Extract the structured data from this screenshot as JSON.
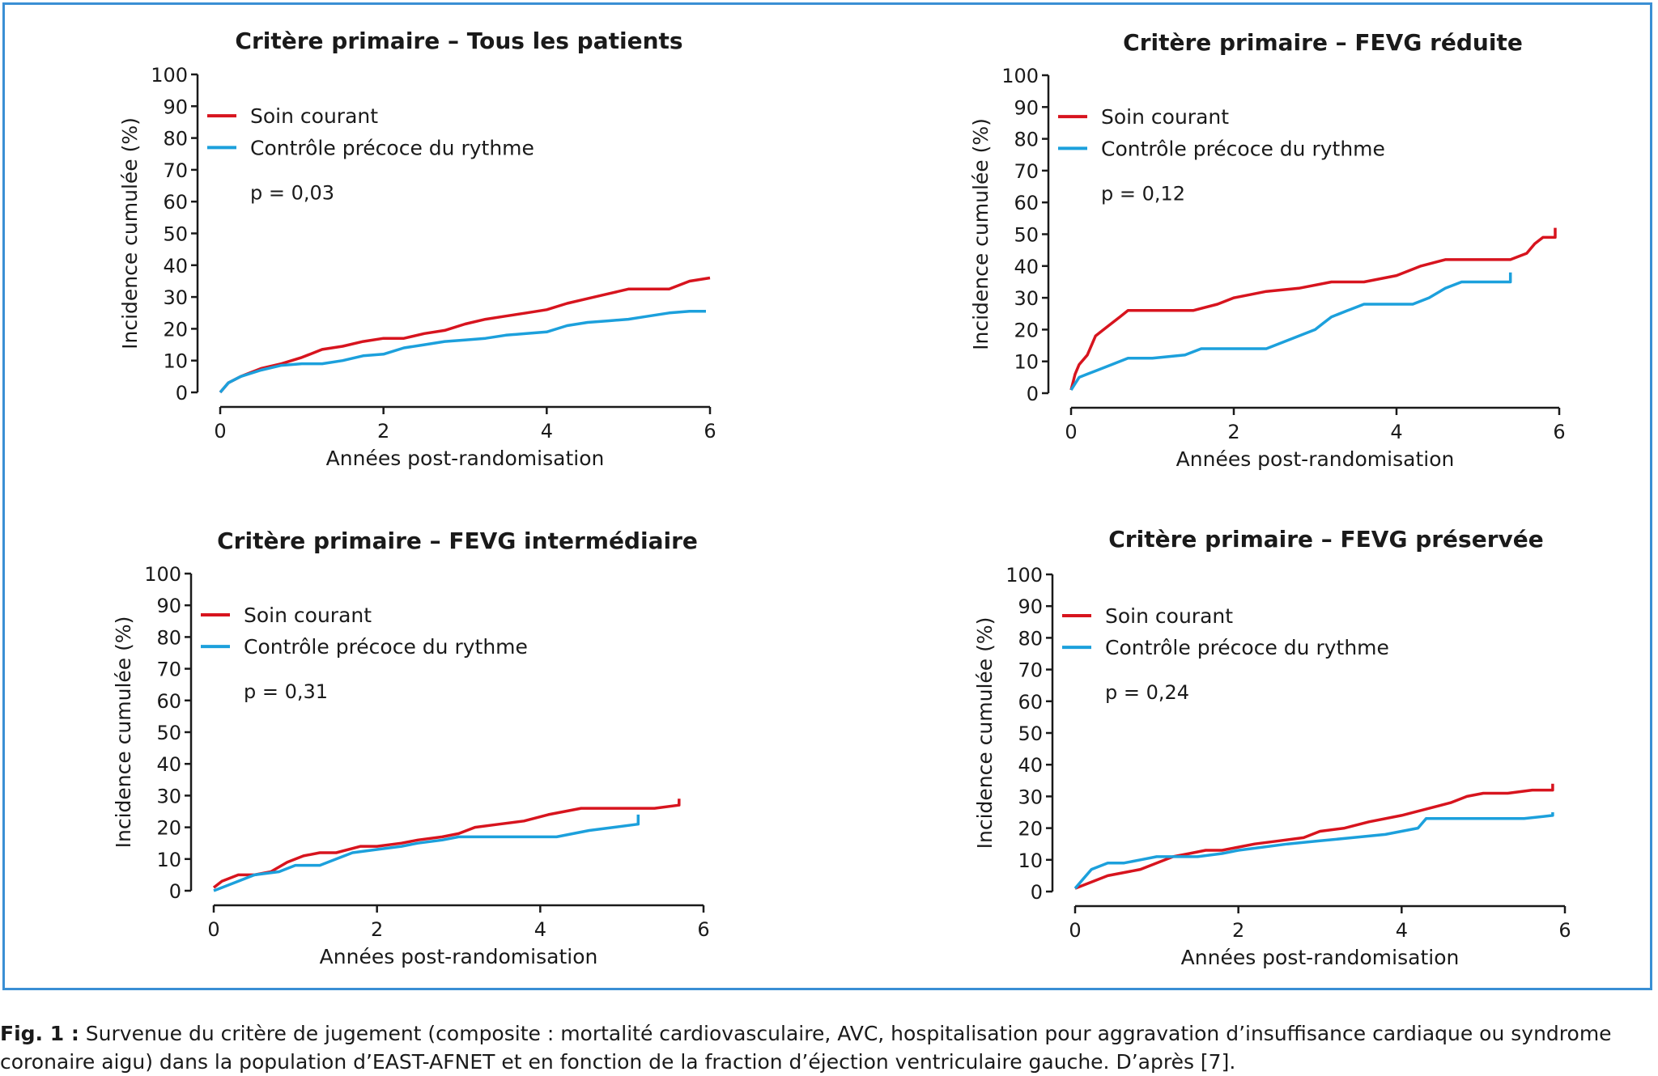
{
  "figure": {
    "caption_label": "Fig. 1 :",
    "caption_text": "Survenue du critère de jugement (composite : mortalité cardiovasculaire, AVC, hospitalisation pour aggravation d’insuffisance cardiaque ou syndrome coronaire aigu) dans la population d’EAST-AFNET et en fonction de la fraction d’éjection ventriculaire gauche. D’après [7]."
  },
  "colors": {
    "frame": "#3a8fd4",
    "soin_courant": "#d7141e",
    "controle_precoce": "#1ca0dc"
  },
  "chart_data": [
    {
      "type": "line",
      "title": "Critère primaire – Tous les patients",
      "xlabel": "Années post-randomisation",
      "ylabel": "Incidence cumulée (%)",
      "xlim": [
        0,
        6
      ],
      "ylim": [
        0,
        100
      ],
      "xticks": [
        0,
        2,
        4,
        6
      ],
      "yticks": [
        0,
        10,
        20,
        30,
        40,
        50,
        60,
        70,
        80,
        90,
        100
      ],
      "annotation": "p = 0,03",
      "legend_position": "top-left",
      "series": [
        {
          "name": "Soin courant",
          "color": "#d7141e",
          "x": [
            0,
            0.1,
            0.25,
            0.5,
            0.75,
            1.0,
            1.25,
            1.5,
            1.75,
            2.0,
            2.25,
            2.5,
            2.75,
            3.0,
            3.25,
            3.5,
            3.75,
            4.0,
            4.25,
            4.5,
            4.75,
            5.0,
            5.25,
            5.5,
            5.75,
            6.0
          ],
          "y": [
            0,
            3,
            5,
            7.5,
            9,
            11,
            13.5,
            14.5,
            16,
            17,
            17,
            18.5,
            19.5,
            21.5,
            23,
            24,
            25,
            26,
            28,
            29.5,
            31,
            32.5,
            32.5,
            32.5,
            35,
            36
          ]
        },
        {
          "name": "Contrôle précoce du rythme",
          "color": "#1ca0dc",
          "x": [
            0,
            0.1,
            0.25,
            0.5,
            0.75,
            1.0,
            1.25,
            1.5,
            1.75,
            2.0,
            2.25,
            2.5,
            2.75,
            3.0,
            3.25,
            3.5,
            3.75,
            4.0,
            4.25,
            4.5,
            4.75,
            5.0,
            5.25,
            5.5,
            5.75,
            5.95
          ],
          "y": [
            0,
            3,
            5,
            7,
            8.5,
            9,
            9,
            10,
            11.5,
            12,
            14,
            15,
            16,
            16.5,
            17,
            18,
            18.5,
            19,
            21,
            22,
            22.5,
            23,
            24,
            25,
            25.5,
            25.5
          ]
        }
      ]
    },
    {
      "type": "line",
      "title": "Critère primaire – FEVG réduite",
      "xlabel": "Années post-randomisation",
      "ylabel": "Incidence cumulée (%)",
      "xlim": [
        0,
        6
      ],
      "ylim": [
        0,
        100
      ],
      "xticks": [
        0,
        2,
        4,
        6
      ],
      "yticks": [
        0,
        10,
        20,
        30,
        40,
        50,
        60,
        70,
        80,
        90,
        100
      ],
      "annotation": "p = 0,12",
      "legend_position": "top-left",
      "series": [
        {
          "name": "Soin courant",
          "color": "#d7141e",
          "x": [
            0,
            0.05,
            0.1,
            0.2,
            0.3,
            0.4,
            0.5,
            0.6,
            0.7,
            1.0,
            1.5,
            1.8,
            2.0,
            2.2,
            2.4,
            2.8,
            3.2,
            3.6,
            4.0,
            4.2,
            4.3,
            4.6,
            5.0,
            5.4,
            5.6,
            5.7,
            5.8,
            5.95,
            5.95
          ],
          "y": [
            1,
            6,
            9,
            12,
            18,
            20,
            22,
            24,
            26,
            26,
            26,
            28,
            30,
            31,
            32,
            33,
            35,
            35,
            37,
            39,
            40,
            42,
            42,
            42,
            44,
            47,
            49,
            49,
            52
          ]
        },
        {
          "name": "Contrôle précoce du rythme",
          "color": "#1ca0dc",
          "x": [
            0,
            0.05,
            0.1,
            0.2,
            0.3,
            0.5,
            0.7,
            1.0,
            1.4,
            1.6,
            2.0,
            2.4,
            2.6,
            2.8,
            3.0,
            3.1,
            3.2,
            3.4,
            3.6,
            4.0,
            4.2,
            4.4,
            4.6,
            4.8,
            5.0,
            5.2,
            5.4,
            5.4
          ],
          "y": [
            1,
            3,
            5,
            6,
            7,
            9,
            11,
            11,
            12,
            14,
            14,
            14,
            16,
            18,
            20,
            22,
            24,
            26,
            28,
            28,
            28,
            30,
            33,
            35,
            35,
            35,
            35,
            38
          ]
        }
      ]
    },
    {
      "type": "line",
      "title": "Critère primaire – FEVG intermédiaire",
      "xlabel": "Années post-randomisation",
      "ylabel": "Incidence cumulée (%)",
      "xlim": [
        0,
        6
      ],
      "ylim": [
        0,
        100
      ],
      "xticks": [
        0,
        2,
        4,
        6
      ],
      "yticks": [
        0,
        10,
        20,
        30,
        40,
        50,
        60,
        70,
        80,
        90,
        100
      ],
      "annotation": "p = 0,31",
      "legend_position": "top-left",
      "series": [
        {
          "name": "Soin courant",
          "color": "#d7141e",
          "x": [
            0,
            0.1,
            0.3,
            0.5,
            0.7,
            0.9,
            1.1,
            1.3,
            1.5,
            1.8,
            2.0,
            2.3,
            2.5,
            2.8,
            3.0,
            3.2,
            3.5,
            3.8,
            4.1,
            4.5,
            4.8,
            5.0,
            5.4,
            5.7,
            5.7
          ],
          "y": [
            1,
            3,
            5,
            5,
            6,
            9,
            11,
            12,
            12,
            14,
            14,
            15,
            16,
            17,
            18,
            20,
            21,
            22,
            24,
            26,
            26,
            26,
            26,
            27,
            29
          ]
        },
        {
          "name": "Contrôle précoce du rythme",
          "color": "#1ca0dc",
          "x": [
            0,
            0.1,
            0.3,
            0.5,
            0.8,
            1.0,
            1.3,
            1.5,
            1.7,
            2.0,
            2.3,
            2.5,
            2.8,
            3.0,
            3.4,
            3.8,
            4.2,
            4.6,
            4.9,
            5.2,
            5.2
          ],
          "y": [
            0,
            1,
            3,
            5,
            6,
            8,
            8,
            10,
            12,
            13,
            14,
            15,
            16,
            17,
            17,
            17,
            17,
            19,
            20,
            21,
            24
          ]
        }
      ]
    },
    {
      "type": "line",
      "title": "Critère primaire – FEVG préservée",
      "xlabel": "Années post-randomisation",
      "ylabel": "Incidence cumulée (%)",
      "xlim": [
        0,
        6
      ],
      "ylim": [
        0,
        100
      ],
      "xticks": [
        0,
        2,
        4,
        6
      ],
      "yticks": [
        0,
        10,
        20,
        30,
        40,
        50,
        60,
        70,
        80,
        90,
        100
      ],
      "annotation": "p = 0,24",
      "legend_position": "top-left",
      "series": [
        {
          "name": "Soin courant",
          "color": "#d7141e",
          "x": [
            0,
            0.2,
            0.4,
            0.6,
            0.8,
            1.0,
            1.2,
            1.4,
            1.6,
            1.8,
            2.0,
            2.2,
            2.5,
            2.8,
            3.0,
            3.3,
            3.6,
            4.0,
            4.3,
            4.6,
            4.8,
            5.0,
            5.3,
            5.6,
            5.85,
            5.85
          ],
          "y": [
            1,
            3,
            5,
            6,
            7,
            9,
            11,
            12,
            13,
            13,
            14,
            15,
            16,
            17,
            19,
            20,
            22,
            24,
            26,
            28,
            30,
            31,
            31,
            32,
            32,
            34
          ]
        },
        {
          "name": "Contrôle précoce du rythme",
          "color": "#1ca0dc",
          "x": [
            0,
            0.1,
            0.2,
            0.4,
            0.6,
            0.8,
            1.0,
            1.2,
            1.5,
            1.8,
            2.0,
            2.3,
            2.6,
            3.0,
            3.4,
            3.8,
            4.0,
            4.2,
            4.3,
            4.6,
            5.0,
            5.5,
            5.85,
            5.85
          ],
          "y": [
            1,
            4,
            7,
            9,
            9,
            10,
            11,
            11,
            11,
            12,
            13,
            14,
            15,
            16,
            17,
            18,
            19,
            20,
            23,
            23,
            23,
            23,
            24,
            25
          ]
        }
      ]
    }
  ]
}
